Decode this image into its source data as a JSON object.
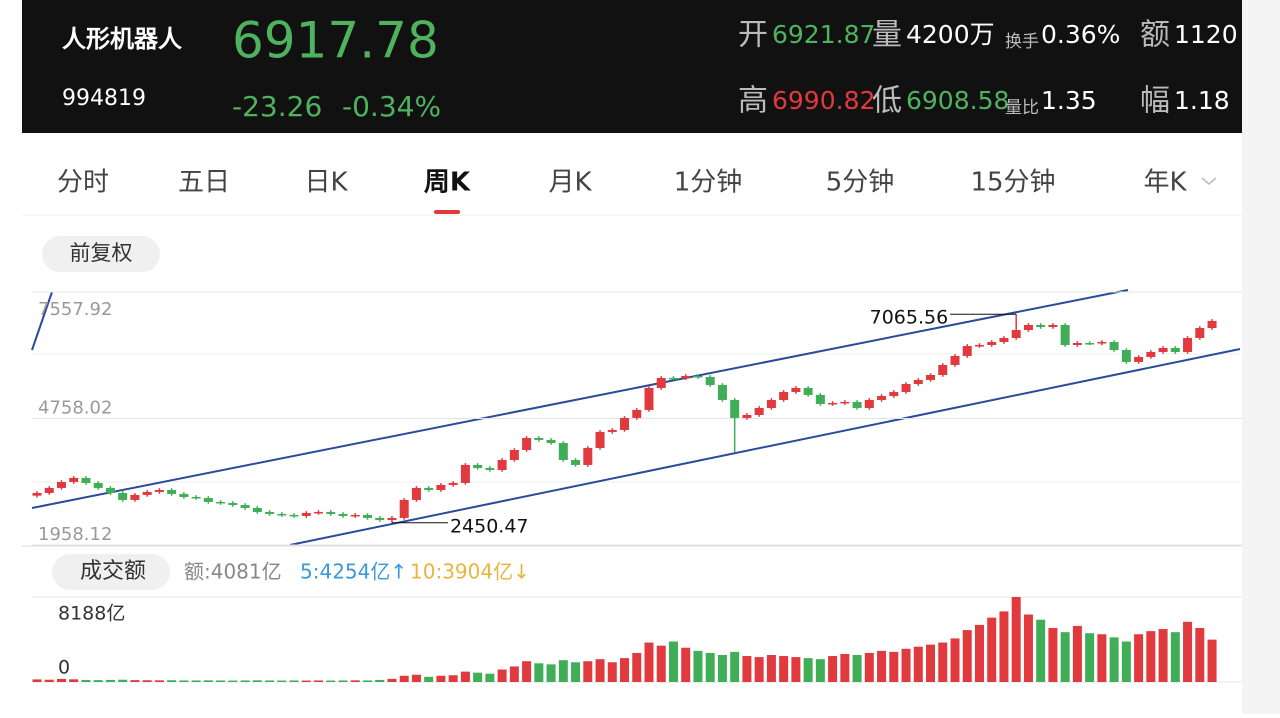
{
  "header": {
    "name": "人形机器人",
    "code": "994819",
    "price": "6917.78",
    "change": "-23.26",
    "change_pct": "-0.34%",
    "fields": [
      {
        "label": "开",
        "value": "6921.87"
      },
      {
        "label": "量",
        "value": "4200万"
      },
      {
        "label": "换手",
        "value": "0.36%"
      },
      {
        "label": "额",
        "value": "1120"
      },
      {
        "label": "高",
        "value": "6990.82"
      },
      {
        "label": "低",
        "value": "6908.58"
      },
      {
        "label": "量比",
        "value": "1.35"
      },
      {
        "label": "幅",
        "value": "1.18"
      }
    ]
  },
  "tabs": {
    "items": [
      "分时",
      "五日",
      "日K",
      "周K",
      "月K",
      "1分钟",
      "5分钟",
      "15分钟",
      "年K"
    ],
    "active": 3
  },
  "adjust_button": "前复权",
  "chart_data": [
    {
      "type": "candlestick",
      "ylim": [
        1958.12,
        7557.92
      ],
      "yticks": [
        7557.92,
        4758.02,
        1958.12
      ],
      "grid": true,
      "up_color": "#e0393e",
      "down_color": "#3fae57",
      "candles": [
        [
          3050,
          3150,
          3010,
          3110
        ],
        [
          3110,
          3261,
          3070,
          3221
        ],
        [
          3221,
          3393,
          3181,
          3353
        ],
        [
          3353,
          3482,
          3313,
          3442
        ],
        [
          3442,
          3482,
          3291,
          3331
        ],
        [
          3331,
          3371,
          3181,
          3221
        ],
        [
          3221,
          3261,
          3070,
          3110
        ],
        [
          3110,
          3150,
          2915,
          2955
        ],
        [
          2955,
          3106,
          2915,
          3066
        ],
        [
          3066,
          3172,
          3026,
          3132
        ],
        [
          3132,
          3216,
          3092,
          3176
        ],
        [
          3176,
          3216,
          3048,
          3088
        ],
        [
          3088,
          3128,
          2981,
          3021
        ],
        [
          3021,
          3061,
          2959,
          2999
        ],
        [
          2999,
          3039,
          2871,
          2911
        ],
        [
          2911,
          2951,
          2849,
          2889
        ],
        [
          2889,
          2929,
          2804,
          2844
        ],
        [
          2844,
          2884,
          2738,
          2778
        ],
        [
          2778,
          2818,
          2649,
          2689
        ],
        [
          2689,
          2729,
          2605,
          2645
        ],
        [
          2645,
          2685,
          2583,
          2623
        ],
        [
          2623,
          2663,
          2561,
          2601
        ],
        [
          2601,
          2707,
          2561,
          2667
        ],
        [
          2667,
          2729,
          2627,
          2689
        ],
        [
          2689,
          2729,
          2605,
          2645
        ],
        [
          2645,
          2685,
          2561,
          2601
        ],
        [
          2601,
          2663,
          2561,
          2623
        ],
        [
          2623,
          2663,
          2517,
          2557
        ],
        [
          2557,
          2597,
          2472,
          2512
        ],
        [
          2512,
          2597,
          2450.47,
          2557
        ],
        [
          2557,
          2995,
          2517,
          2955
        ],
        [
          2955,
          3261,
          2915,
          3221
        ],
        [
          3221,
          3261,
          3136,
          3176
        ],
        [
          3176,
          3327,
          3136,
          3287
        ],
        [
          3287,
          3371,
          3247,
          3331
        ],
        [
          3331,
          3770,
          3291,
          3730
        ],
        [
          3730,
          3770,
          3623,
          3663
        ],
        [
          3663,
          3703,
          3579,
          3619
        ],
        [
          3619,
          3880,
          3579,
          3840
        ],
        [
          3840,
          4101,
          3800,
          4061
        ],
        [
          4061,
          4367,
          4021,
          4327
        ],
        [
          4327,
          4367,
          4243,
          4283
        ],
        [
          4283,
          4323,
          4176,
          4216
        ],
        [
          4216,
          4256,
          3800,
          3840
        ],
        [
          3840,
          3880,
          3690,
          3730
        ],
        [
          3730,
          4146,
          3690,
          4106
        ],
        [
          4106,
          4500,
          4066,
          4460
        ],
        [
          4460,
          4544,
          4420,
          4504
        ],
        [
          4504,
          4810,
          4464,
          4770
        ],
        [
          4770,
          4987,
          4730,
          4947
        ],
        [
          4947,
          5474,
          4907,
          5434
        ],
        [
          5434,
          5695,
          5394,
          5655
        ],
        [
          5655,
          5695,
          5610,
          5650
        ],
        [
          5650,
          5739,
          5610,
          5699
        ],
        [
          5699,
          5739,
          5637,
          5677
        ],
        [
          5677,
          5717,
          5460,
          5500
        ],
        [
          5500,
          5540,
          5128,
          5168
        ],
        [
          5168,
          5208,
          4017,
          4770
        ],
        [
          4770,
          4876,
          4730,
          4836
        ],
        [
          4836,
          5031,
          4796,
          4991
        ],
        [
          4991,
          5208,
          4951,
          5168
        ],
        [
          5168,
          5385,
          5128,
          5345
        ],
        [
          5345,
          5474,
          5305,
          5434
        ],
        [
          5434,
          5474,
          5239,
          5279
        ],
        [
          5279,
          5319,
          5039,
          5079
        ],
        [
          5079,
          5142,
          5039,
          5102
        ],
        [
          5102,
          5164,
          5062,
          5124
        ],
        [
          5124,
          5164,
          4951,
          4991
        ],
        [
          4991,
          5208,
          4951,
          5168
        ],
        [
          5168,
          5296,
          5128,
          5256
        ],
        [
          5256,
          5385,
          5216,
          5345
        ],
        [
          5345,
          5562,
          5305,
          5522
        ],
        [
          5522,
          5651,
          5482,
          5611
        ],
        [
          5611,
          5761,
          5571,
          5721
        ],
        [
          5721,
          5983,
          5681,
          5943
        ],
        [
          5943,
          6182,
          5903,
          6142
        ],
        [
          6142,
          6403,
          6102,
          6363
        ],
        [
          6363,
          6425,
          6323,
          6385
        ],
        [
          6385,
          6491,
          6345,
          6451
        ],
        [
          6451,
          6580,
          6411,
          6540
        ],
        [
          6540,
          7065.56,
          6500,
          6717
        ],
        [
          6717,
          6868,
          6677,
          6828
        ],
        [
          6828,
          6868,
          6743,
          6783
        ],
        [
          6783,
          6868,
          6743,
          6828
        ],
        [
          6828,
          6868,
          6345,
          6385
        ],
        [
          6385,
          6469,
          6345,
          6429
        ],
        [
          6429,
          6469,
          6380,
          6420
        ],
        [
          6420,
          6491,
          6380,
          6451
        ],
        [
          6451,
          6491,
          6234,
          6274
        ],
        [
          6274,
          6314,
          5969,
          6009
        ],
        [
          6009,
          6160,
          5969,
          6120
        ],
        [
          6120,
          6270,
          6080,
          6230
        ],
        [
          6230,
          6359,
          6190,
          6319
        ],
        [
          6319,
          6359,
          6190,
          6230
        ],
        [
          6230,
          6580,
          6190,
          6540
        ],
        [
          6540,
          6801,
          6500,
          6761
        ],
        [
          6761,
          6958,
          6721,
          6918
        ]
      ],
      "annotations": [
        {
          "candle": 80,
          "part": 1
        },
        {
          "candle": 29,
          "part": 2
        }
      ]
    },
    {
      "type": "bar",
      "title": "成交额",
      "legend": [
        {
          "text": "额:4081亿",
          "color": "#888888"
        },
        {
          "text": "5:4254亿↑",
          "color": "#3a9ad9"
        },
        {
          "text": "10:3904亿↓",
          "color": "#e8b640"
        }
      ],
      "ylim": [
        0,
        8188
      ],
      "yticks": [
        {
          "value": 8188,
          "label": "8188亿"
        },
        0
      ],
      "values": [
        250,
        220,
        300,
        260,
        200,
        180,
        200,
        220,
        180,
        170,
        160,
        170,
        150,
        150,
        160,
        150,
        140,
        150,
        160,
        150,
        140,
        150,
        140,
        150,
        140,
        150,
        160,
        150,
        200,
        300,
        600,
        700,
        500,
        600,
        650,
        1000,
        900,
        800,
        1200,
        1500,
        2000,
        1800,
        1700,
        2100,
        1900,
        2000,
        2200,
        1900,
        2300,
        2800,
        3800,
        3500,
        3900,
        3300,
        3000,
        2800,
        2600,
        2900,
        2500,
        2400,
        2600,
        2500,
        2400,
        2300,
        2200,
        2500,
        2700,
        2600,
        2800,
        3000,
        2900,
        3200,
        3400,
        3600,
        3800,
        4200,
        5000,
        5500,
        6200,
        6800,
        8188,
        6500,
        6000,
        5200,
        4800,
        5400,
        4700,
        4600,
        4300,
        3900,
        4600,
        4900,
        5100,
        4800,
        5800,
        5200,
        4081
      ]
    }
  ]
}
